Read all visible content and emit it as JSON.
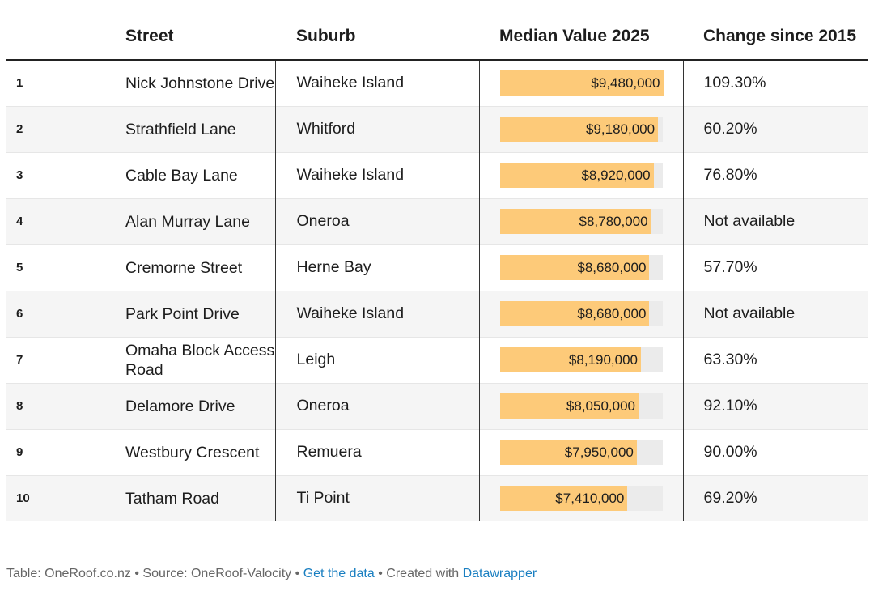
{
  "table": {
    "columns": [
      "",
      "Street",
      "Suburb",
      "Median Value 2025",
      "Change since 2015"
    ],
    "rows": [
      {
        "rank": "1",
        "street": "Nick Johnstone Drive",
        "suburb": "Waiheke Island",
        "value": 9480000,
        "value_label": "$9,480,000",
        "change": "109.30%"
      },
      {
        "rank": "2",
        "street": "Strathfield Lane",
        "suburb": "Whitford",
        "value": 9180000,
        "value_label": "$9,180,000",
        "change": "60.20%"
      },
      {
        "rank": "3",
        "street": "Cable Bay Lane",
        "suburb": "Waiheke Island",
        "value": 8920000,
        "value_label": "$8,920,000",
        "change": "76.80%"
      },
      {
        "rank": "4",
        "street": "Alan Murray Lane",
        "suburb": "Oneroa",
        "value": 8780000,
        "value_label": "$8,780,000",
        "change": "Not available"
      },
      {
        "rank": "5",
        "street": "Cremorne Street",
        "suburb": "Herne Bay",
        "value": 8680000,
        "value_label": "$8,680,000",
        "change": "57.70%"
      },
      {
        "rank": "6",
        "street": "Park Point Drive",
        "suburb": "Waiheke Island",
        "value": 8680000,
        "value_label": "$8,680,000",
        "change": "Not available"
      },
      {
        "rank": "7",
        "street": "Omaha Block Access Road",
        "suburb": "Leigh",
        "value": 8190000,
        "value_label": "$8,190,000",
        "change": "63.30%"
      },
      {
        "rank": "8",
        "street": "Delamore Drive",
        "suburb": "Oneroa",
        "value": 8050000,
        "value_label": "$8,050,000",
        "change": "92.10%"
      },
      {
        "rank": "9",
        "street": "Westbury Crescent",
        "suburb": "Remuera",
        "value": 7950000,
        "value_label": "$7,950,000",
        "change": "90.00%"
      },
      {
        "rank": "10",
        "street": "Tatham Road",
        "suburb": "Ti Point",
        "value": 7410000,
        "value_label": "$7,410,000",
        "change": "69.20%"
      }
    ]
  },
  "footer": {
    "separator": "•",
    "credit": "Table: OneRoof.co.nz",
    "source": "Source: OneRoof-Valocity",
    "get_data": "Get the data",
    "created_with": "Created with",
    "tool": "Datawrapper"
  }
}
